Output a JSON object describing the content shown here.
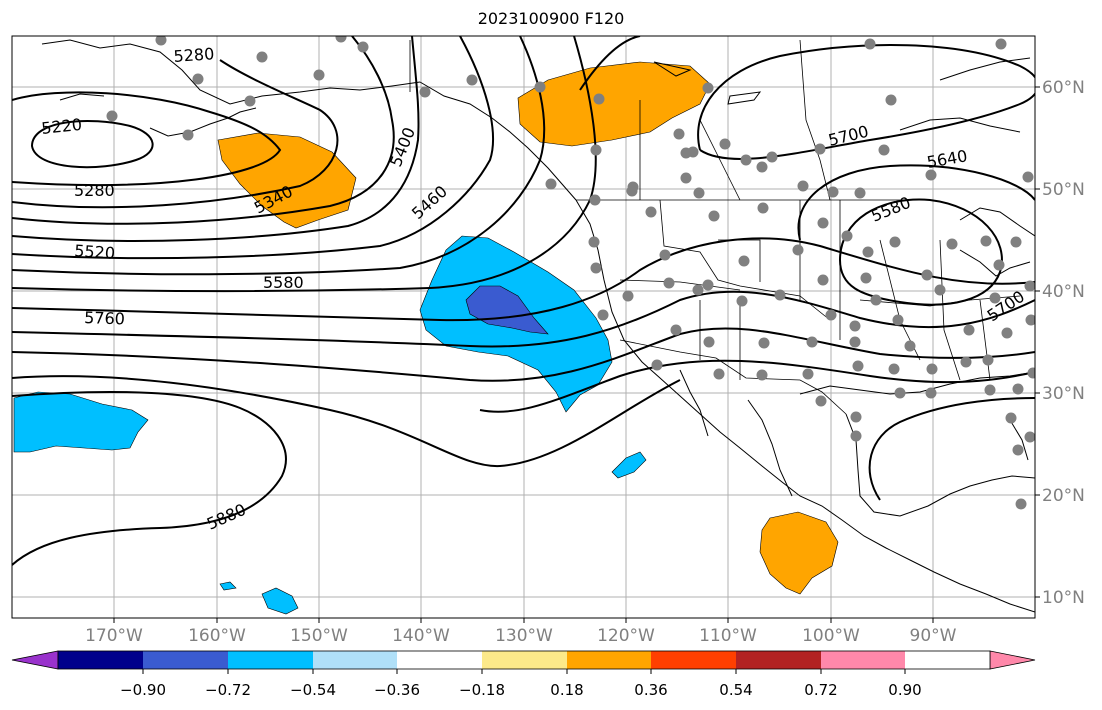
{
  "title": "2023100900 F120",
  "lon_labels": [
    "170°W",
    "160°W",
    "150°W",
    "140°W",
    "130°W",
    "120°W",
    "110°W",
    "100°W",
    "90°W"
  ],
  "lat_labels": [
    "60°N",
    "50°N",
    "40°N",
    "30°N",
    "20°N",
    "10°N"
  ],
  "contour_labels": [
    "5220",
    "5280",
    "5280",
    "5340",
    "5400",
    "5460",
    "5520",
    "5580",
    "5580",
    "5640",
    "5700",
    "5700",
    "5760",
    "5880"
  ],
  "colorbar": {
    "colors": [
      "#9932cc",
      "#00008b",
      "#3a5bd0",
      "#00bfff",
      "#b0e0f8",
      "#ffffff",
      "#fce98a",
      "#ffa500",
      "#ff3f00",
      "#b22222",
      "#ff88aa"
    ],
    "ticks": [
      "−0.90",
      "−0.72",
      "−0.54",
      "−0.36",
      "−0.18",
      "0.18",
      "0.36",
      "0.54",
      "0.72",
      "0.90"
    ]
  }
}
